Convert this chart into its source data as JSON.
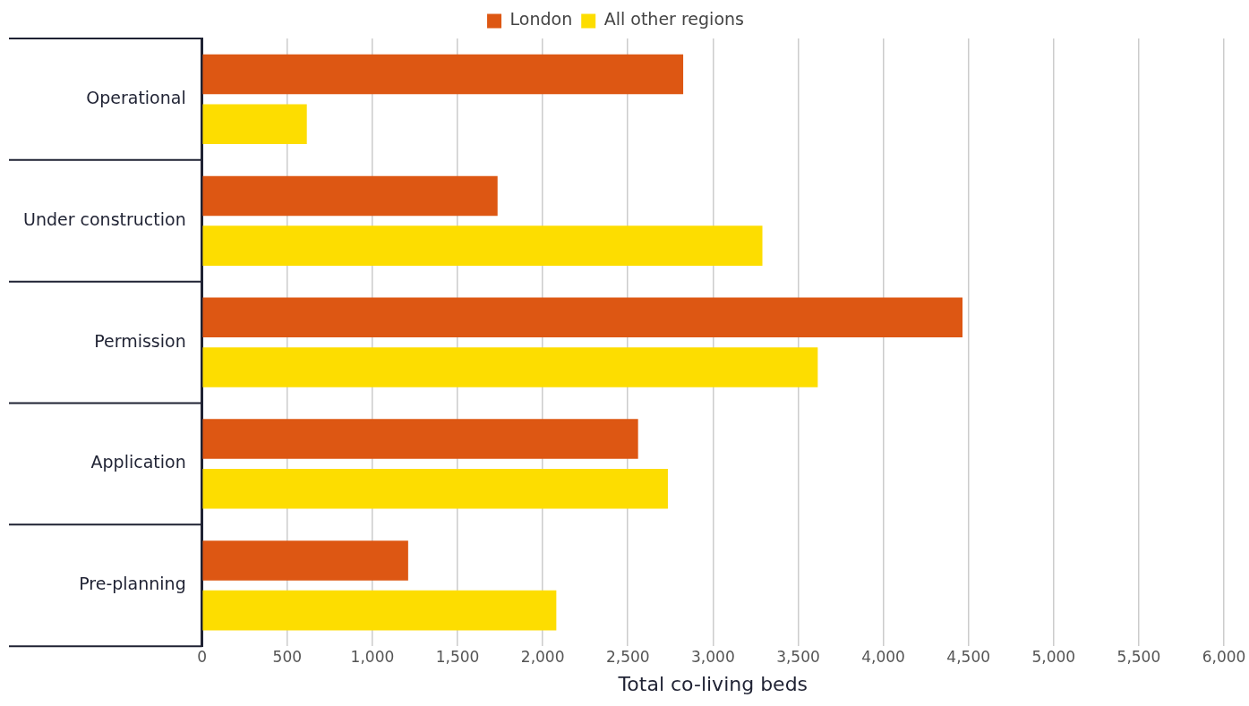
{
  "chart_data": {
    "type": "bar",
    "orientation": "horizontal",
    "xlabel": "Total co-living beds",
    "categories": [
      "Operational",
      "Under construction",
      "Permission",
      "Application",
      "Pre-planning"
    ],
    "series": [
      {
        "name": "London",
        "color": "#dd5713",
        "values": [
          2825,
          1735,
          4465,
          2560,
          1210
        ]
      },
      {
        "name": "All other regions",
        "color": "#fddd00",
        "values": [
          615,
          3290,
          3615,
          2735,
          2080
        ]
      }
    ],
    "xlim": [
      0,
      6000
    ],
    "xticks": [
      {
        "value": 0,
        "label": "0"
      },
      {
        "value": 500,
        "label": "500"
      },
      {
        "value": 1000,
        "label": "1,000"
      },
      {
        "value": 1500,
        "label": "1,500"
      },
      {
        "value": 2000,
        "label": "2,000"
      },
      {
        "value": 2500,
        "label": "2,500"
      },
      {
        "value": 3000,
        "label": "3,000"
      },
      {
        "value": 3500,
        "label": "3,500"
      },
      {
        "value": 4000,
        "label": "4,000"
      },
      {
        "value": 4500,
        "label": "4,500"
      },
      {
        "value": 5000,
        "label": "5,000"
      },
      {
        "value": 5500,
        "label": "5,500"
      },
      {
        "value": 6000,
        "label": "6,000"
      }
    ],
    "grid": "x",
    "legend": "top"
  }
}
